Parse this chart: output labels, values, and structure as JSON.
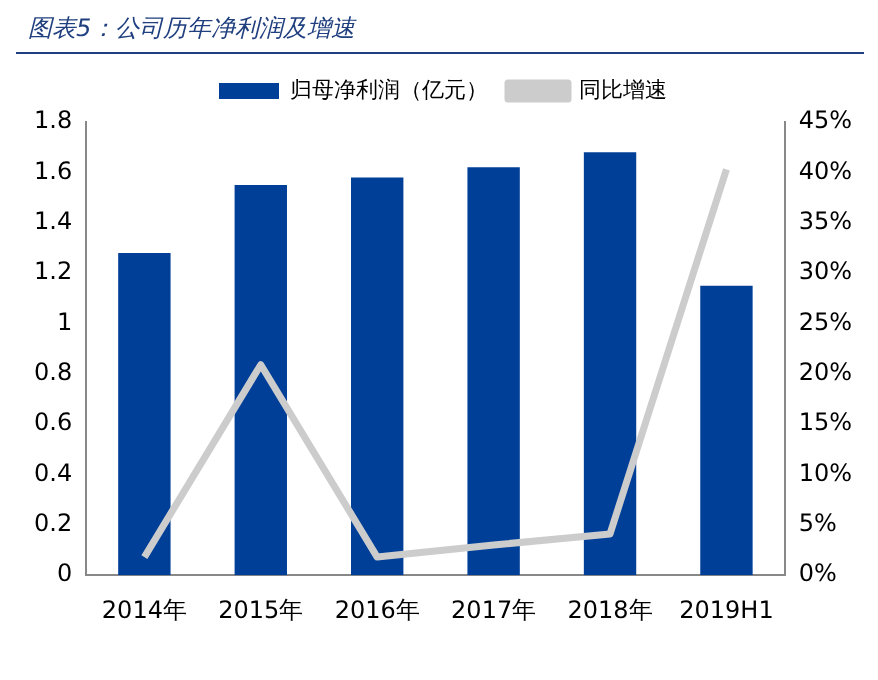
{
  "chart_data": {
    "type": "bar",
    "title": "图表5：公司历年净利润及增速",
    "categories": [
      "2014年",
      "2015年",
      "2016年",
      "2017年",
      "2018年",
      "2019H1"
    ],
    "series": [
      {
        "name": "归母净利润（亿元）",
        "color": "#003f98",
        "values": [
          1.28,
          1.55,
          1.58,
          1.62,
          1.68,
          1.15
        ]
      },
      {
        "name": "同比增速",
        "type": "line",
        "axis": "y2",
        "color": "#cccccc",
        "values": [
          1.8,
          20.9,
          1.8,
          3,
          4.1,
          40.3
        ]
      }
    ],
    "ylim": [
      0,
      1.8
    ],
    "yticks": [
      0,
      0.2,
      0.4,
      0.6,
      0.8,
      1,
      1.2,
      1.4,
      1.6,
      1.8
    ],
    "y2lim": [
      0,
      45
    ],
    "y2ticks": [
      {
        "value": 0,
        "label": "0%"
      },
      {
        "value": 5,
        "label": "5%"
      },
      {
        "value": 10,
        "label": "10%"
      },
      {
        "value": 15,
        "label": "15%"
      },
      {
        "value": 20,
        "label": "20%"
      },
      {
        "value": 25,
        "label": "25%"
      },
      {
        "value": 30,
        "label": "30%"
      },
      {
        "value": 35,
        "label": "35%"
      },
      {
        "value": 40,
        "label": "40%"
      },
      {
        "value": 45,
        "label": "45%"
      }
    ],
    "grid": false,
    "legend": "top",
    "marker": "none",
    "line_style": "solid"
  }
}
